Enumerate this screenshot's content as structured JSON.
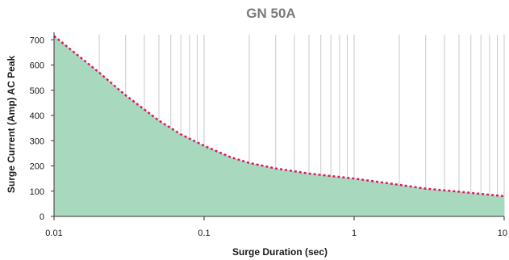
{
  "chart_data": {
    "type": "area",
    "title": "GN 50A",
    "xlabel": "Surge Duration (sec)",
    "ylabel": "Surge Current (Amp) AC Peak",
    "x_scale": "log",
    "xlim": [
      0.01,
      10
    ],
    "ylim": [
      0,
      720
    ],
    "x_ticks": [
      0.01,
      0.1,
      1,
      10
    ],
    "x_tick_labels": [
      "0.01",
      "0.1",
      "1",
      "10"
    ],
    "y_ticks": [
      0,
      100,
      200,
      300,
      400,
      500,
      600,
      700
    ],
    "y_tick_labels": [
      "0",
      "100",
      "200",
      "300",
      "400",
      "500",
      "600",
      "700"
    ],
    "grid": "x-log-minor",
    "x": [
      0.01,
      0.02,
      0.03,
      0.05,
      0.07,
      0.1,
      0.15,
      0.2,
      0.3,
      0.5,
      0.7,
      1,
      2,
      3,
      5,
      10
    ],
    "values": [
      715,
      570,
      480,
      380,
      325,
      280,
      235,
      212,
      190,
      170,
      160,
      150,
      125,
      110,
      98,
      80
    ],
    "fill_color": "#a8d9bf",
    "line_color": "#d81b60",
    "line_style": "dotted"
  }
}
